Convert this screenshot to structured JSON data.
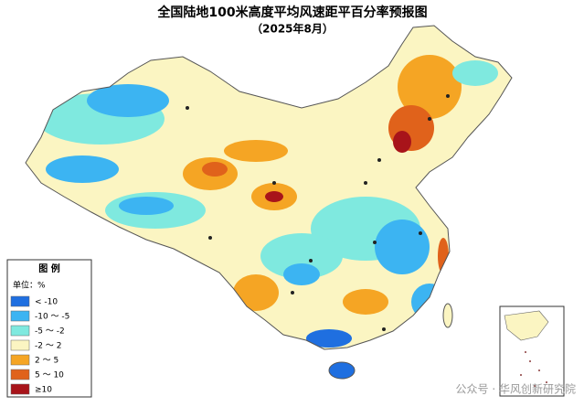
{
  "header": {
    "title": "全国陆地100米高度平均风速距平百分率预报图",
    "subtitle": "（2025年8月）"
  },
  "legend": {
    "title": "图  例",
    "unit": "单位：%",
    "items": [
      {
        "label": "< -10",
        "color": "#1f6fe0"
      },
      {
        "label": "-10 ～ -5",
        "color": "#3cb4f2"
      },
      {
        "label": "-5 ～ -2",
        "color": "#7fe9df"
      },
      {
        "label": "-2 ～ 2",
        "color": "#fbf5c2"
      },
      {
        "label": "2 ～ 5",
        "color": "#f5a524"
      },
      {
        "label": "5 ～ 10",
        "color": "#e0621b"
      },
      {
        "label": "≥10",
        "color": "#a8141a"
      }
    ]
  },
  "watermark": "公众号 · 华风创新研究院"
}
